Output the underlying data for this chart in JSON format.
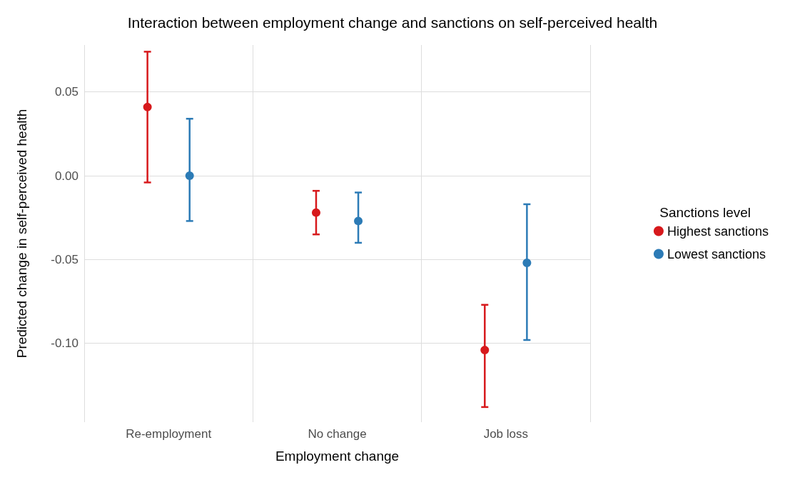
{
  "chart_data": {
    "type": "scatter",
    "title": "Interaction between employment change and sanctions on self-perceived health",
    "xlabel": "Employment change",
    "ylabel": "Predicted change in self-perceived health",
    "legend_title": "Sanctions level",
    "categories": [
      "Re-employment",
      "No change",
      "Job loss"
    ],
    "series": [
      {
        "name": "Highest sanctions",
        "color": "#d7191c",
        "values": [
          0.041,
          -0.022,
          -0.104
        ],
        "errors": [
          [
            -0.004,
            0.074
          ],
          [
            -0.035,
            -0.009
          ],
          [
            -0.138,
            -0.077
          ]
        ]
      },
      {
        "name": "Lowest sanctions",
        "color": "#2c7bb6",
        "values": [
          0.0,
          -0.027,
          -0.052
        ],
        "errors": [
          [
            -0.027,
            0.034
          ],
          [
            -0.04,
            -0.01
          ],
          [
            -0.098,
            -0.017
          ]
        ]
      }
    ],
    "ylim": [
      -0.147,
      0.078
    ],
    "yticks": [
      {
        "value": -0.1,
        "label": "-0.10"
      },
      {
        "value": -0.05,
        "label": "-0.05"
      },
      {
        "value": 0,
        "label": "0.00"
      },
      {
        "value": 0.05,
        "label": "0.05"
      }
    ],
    "grid": true,
    "legend": "right",
    "marker": "circle"
  }
}
